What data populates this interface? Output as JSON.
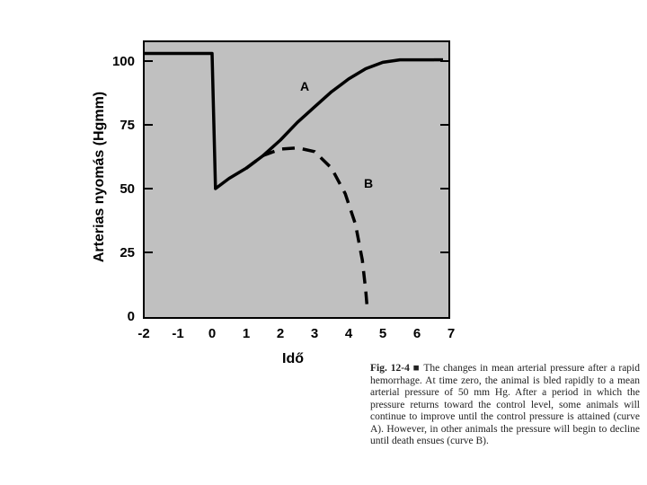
{
  "chart_data": {
    "type": "line",
    "title": "",
    "xlabel": "Idő",
    "ylabel": "Arterias nyomás (Hgmm)",
    "xlim": [
      -2,
      7
    ],
    "ylim": [
      0,
      110
    ],
    "x_ticks": [
      -2,
      -1,
      0,
      1,
      2,
      3,
      4,
      5,
      6,
      7
    ],
    "y_ticks": [
      0,
      25,
      50,
      75,
      100
    ],
    "background": "#c0c0c0",
    "grid": false,
    "series": [
      {
        "name": "A",
        "style": "solid",
        "x": [
          -2,
          0,
          0.1,
          0.5,
          1,
          1.5,
          2,
          2.5,
          3,
          3.5,
          4,
          4.5,
          5,
          5.5,
          6,
          6.5
        ],
        "y": [
          103,
          103,
          50,
          54,
          58,
          63,
          69,
          76,
          82,
          88,
          93,
          97,
          99.5,
          100.5,
          100.5,
          100.5
        ]
      },
      {
        "name": "B",
        "style": "dashed",
        "x": [
          1,
          1.5,
          2,
          2.5,
          3,
          3.5,
          3.9,
          4.2,
          4.4,
          4.5,
          4.55
        ],
        "y": [
          58,
          63,
          65.5,
          66,
          64.5,
          58,
          48,
          36,
          22,
          10,
          2
        ]
      }
    ]
  },
  "caption": {
    "label": "Fig. 12-4 ■",
    "text": "The changes in mean arterial pressure after a rapid hemorrhage. At time zero, the animal is bled rapidly to a mean arterial pressure of 50 mm Hg. After a period in which the pressure returns toward the control level, some animals will continue to improve until the control pressure is attained (curve A). However, in other animals the pressure will begin to decline until death ensues (curve B)."
  }
}
